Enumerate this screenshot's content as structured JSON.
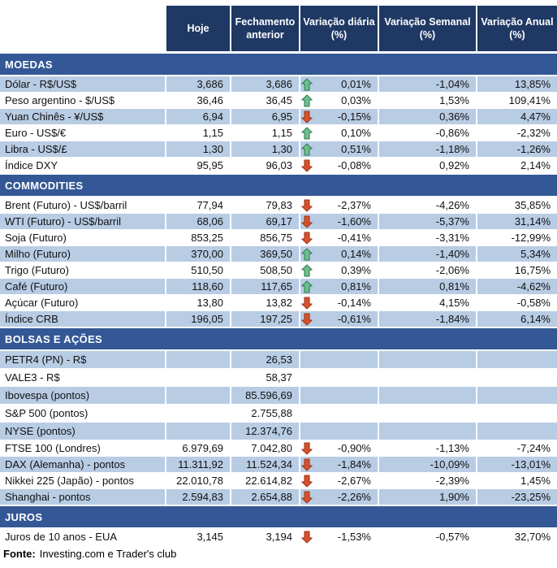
{
  "header": {
    "columns": [
      "Hoje",
      "Fechamento anterior",
      "Variação diária (%)",
      "Variação Semanal (%)",
      "Variação Anual (%)"
    ]
  },
  "sections": [
    {
      "title": "MOEDAS",
      "rows": [
        {
          "label": "Dólar - R$/US$",
          "hoje": "3,686",
          "fechamento": "3,686",
          "arrow": "up",
          "diaria": "0,01%",
          "semanal": "-1,04%",
          "anual": "13,85%",
          "shaded": true
        },
        {
          "label": "Peso argentino - $/US$",
          "hoje": "36,46",
          "fechamento": "36,45",
          "arrow": "up",
          "diaria": "0,03%",
          "semanal": "1,53%",
          "anual": "109,41%",
          "shaded": false
        },
        {
          "label": "Yuan Chinês - ¥/US$",
          "hoje": "6,94",
          "fechamento": "6,95",
          "arrow": "down",
          "diaria": "-0,15%",
          "semanal": "0,36%",
          "anual": "4,47%",
          "shaded": true
        },
        {
          "label": "Euro - US$/€",
          "hoje": "1,15",
          "fechamento": "1,15",
          "arrow": "up",
          "diaria": "0,10%",
          "semanal": "-0,86%",
          "anual": "-2,32%",
          "shaded": false
        },
        {
          "label": "Libra - US$/£",
          "hoje": "1,30",
          "fechamento": "1,30",
          "arrow": "up",
          "diaria": "0,51%",
          "semanal": "-1,18%",
          "anual": "-1,26%",
          "shaded": true
        },
        {
          "label": "Índice DXY",
          "hoje": "95,95",
          "fechamento": "96,03",
          "arrow": "down",
          "diaria": "-0,08%",
          "semanal": "0,92%",
          "anual": "2,14%",
          "shaded": false
        }
      ]
    },
    {
      "title": "COMMODITIES",
      "rows": [
        {
          "label": "Brent (Futuro) - US$/barril",
          "hoje": "77,94",
          "fechamento": "79,83",
          "arrow": "down",
          "diaria": "-2,37%",
          "semanal": "-4,26%",
          "anual": "35,85%",
          "shaded": false
        },
        {
          "label": "WTI (Futuro) - US$/barril",
          "hoje": "68,06",
          "fechamento": "69,17",
          "arrow": "down",
          "diaria": "-1,60%",
          "semanal": "-5,37%",
          "anual": "31,14%",
          "shaded": true
        },
        {
          "label": "Soja (Futuro)",
          "hoje": "853,25",
          "fechamento": "856,75",
          "arrow": "down",
          "diaria": "-0,41%",
          "semanal": "-3,31%",
          "anual": "-12,99%",
          "shaded": false
        },
        {
          "label": "Milho (Futuro)",
          "hoje": "370,00",
          "fechamento": "369,50",
          "arrow": "up",
          "diaria": "0,14%",
          "semanal": "-1,40%",
          "anual": "5,34%",
          "shaded": true
        },
        {
          "label": "Trigo (Futuro)",
          "hoje": "510,50",
          "fechamento": "508,50",
          "arrow": "up",
          "diaria": "0,39%",
          "semanal": "-2,06%",
          "anual": "16,75%",
          "shaded": false
        },
        {
          "label": "Café (Futuro)",
          "hoje": "118,60",
          "fechamento": "117,65",
          "arrow": "up",
          "diaria": "0,81%",
          "semanal": "0,81%",
          "anual": "-4,62%",
          "shaded": true
        },
        {
          "label": "Açúcar (Futuro)",
          "hoje": "13,80",
          "fechamento": "13,82",
          "arrow": "down",
          "diaria": "-0,14%",
          "semanal": "4,15%",
          "anual": "-0,58%",
          "shaded": false
        },
        {
          "label": "Índice CRB",
          "hoje": "196,05",
          "fechamento": "197,25",
          "arrow": "down",
          "diaria": "-0,61%",
          "semanal": "-1,84%",
          "anual": "6,14%",
          "shaded": true
        }
      ]
    },
    {
      "title": "BOLSAS E AÇÕES",
      "rows": [
        {
          "label": "PETR4 (PN) - R$",
          "hoje": "",
          "fechamento": "26,53",
          "arrow": "",
          "diaria": "",
          "semanal": "",
          "anual": "",
          "shaded": true,
          "tall": true
        },
        {
          "label": "VALE3 - R$",
          "hoje": "",
          "fechamento": "58,37",
          "arrow": "",
          "diaria": "",
          "semanal": "",
          "anual": "",
          "shaded": false,
          "tall": true
        },
        {
          "label": "Ibovespa (pontos)",
          "hoje": "",
          "fechamento": "85.596,69",
          "arrow": "",
          "diaria": "",
          "semanal": "",
          "anual": "",
          "shaded": true,
          "tall": true
        },
        {
          "label": "S&P 500 (pontos)",
          "hoje": "",
          "fechamento": "2.755,88",
          "arrow": "",
          "diaria": "",
          "semanal": "",
          "anual": "",
          "shaded": false,
          "tall": true
        },
        {
          "label": "NYSE (pontos)",
          "hoje": "",
          "fechamento": "12.374,76",
          "arrow": "",
          "diaria": "",
          "semanal": "",
          "anual": "",
          "shaded": true,
          "tall": true
        },
        {
          "label": "FTSE 100 (Londres)",
          "hoje": "6.979,69",
          "fechamento": "7.042,80",
          "arrow": "down",
          "diaria": "-0,90%",
          "semanal": "-1,13%",
          "anual": "-7,24%",
          "shaded": false
        },
        {
          "label": "DAX (Alemanha) - pontos",
          "hoje": "11.311,92",
          "fechamento": "11.524,34",
          "arrow": "down",
          "diaria": "-1,84%",
          "semanal": "-10,09%",
          "anual": "-13,01%",
          "shaded": true
        },
        {
          "label": "Nikkei 225 (Japão) - pontos",
          "hoje": "22.010,78",
          "fechamento": "22.614,82",
          "arrow": "down",
          "diaria": "-2,67%",
          "semanal": "-2,39%",
          "anual": "1,45%",
          "shaded": false
        },
        {
          "label": "Shanghai - pontos",
          "hoje": "2.594,83",
          "fechamento": "2.654,88",
          "arrow": "down",
          "diaria": "-2,26%",
          "semanal": "1,90%",
          "anual": "-23,25%",
          "shaded": true
        }
      ]
    },
    {
      "title": "JUROS",
      "rows": [
        {
          "label": "Juros de 10 anos - EUA",
          "hoje": "3,145",
          "fechamento": "3,194",
          "arrow": "down",
          "diaria": "-1,53%",
          "semanal": "-0,57%",
          "anual": "32,70%",
          "shaded": false
        }
      ]
    }
  ],
  "footer": {
    "label": "Fonte:",
    "text": "Investing.com e Trader's club"
  },
  "colors": {
    "header_bg": "#1F3864",
    "section_bg": "#345896",
    "row_shaded": "#B8CCE4",
    "arrow_up": "#6FBE8D",
    "arrow_up_stroke": "#2F7D58",
    "arrow_down": "#D8512C",
    "arrow_down_stroke": "#9C3A1E"
  }
}
